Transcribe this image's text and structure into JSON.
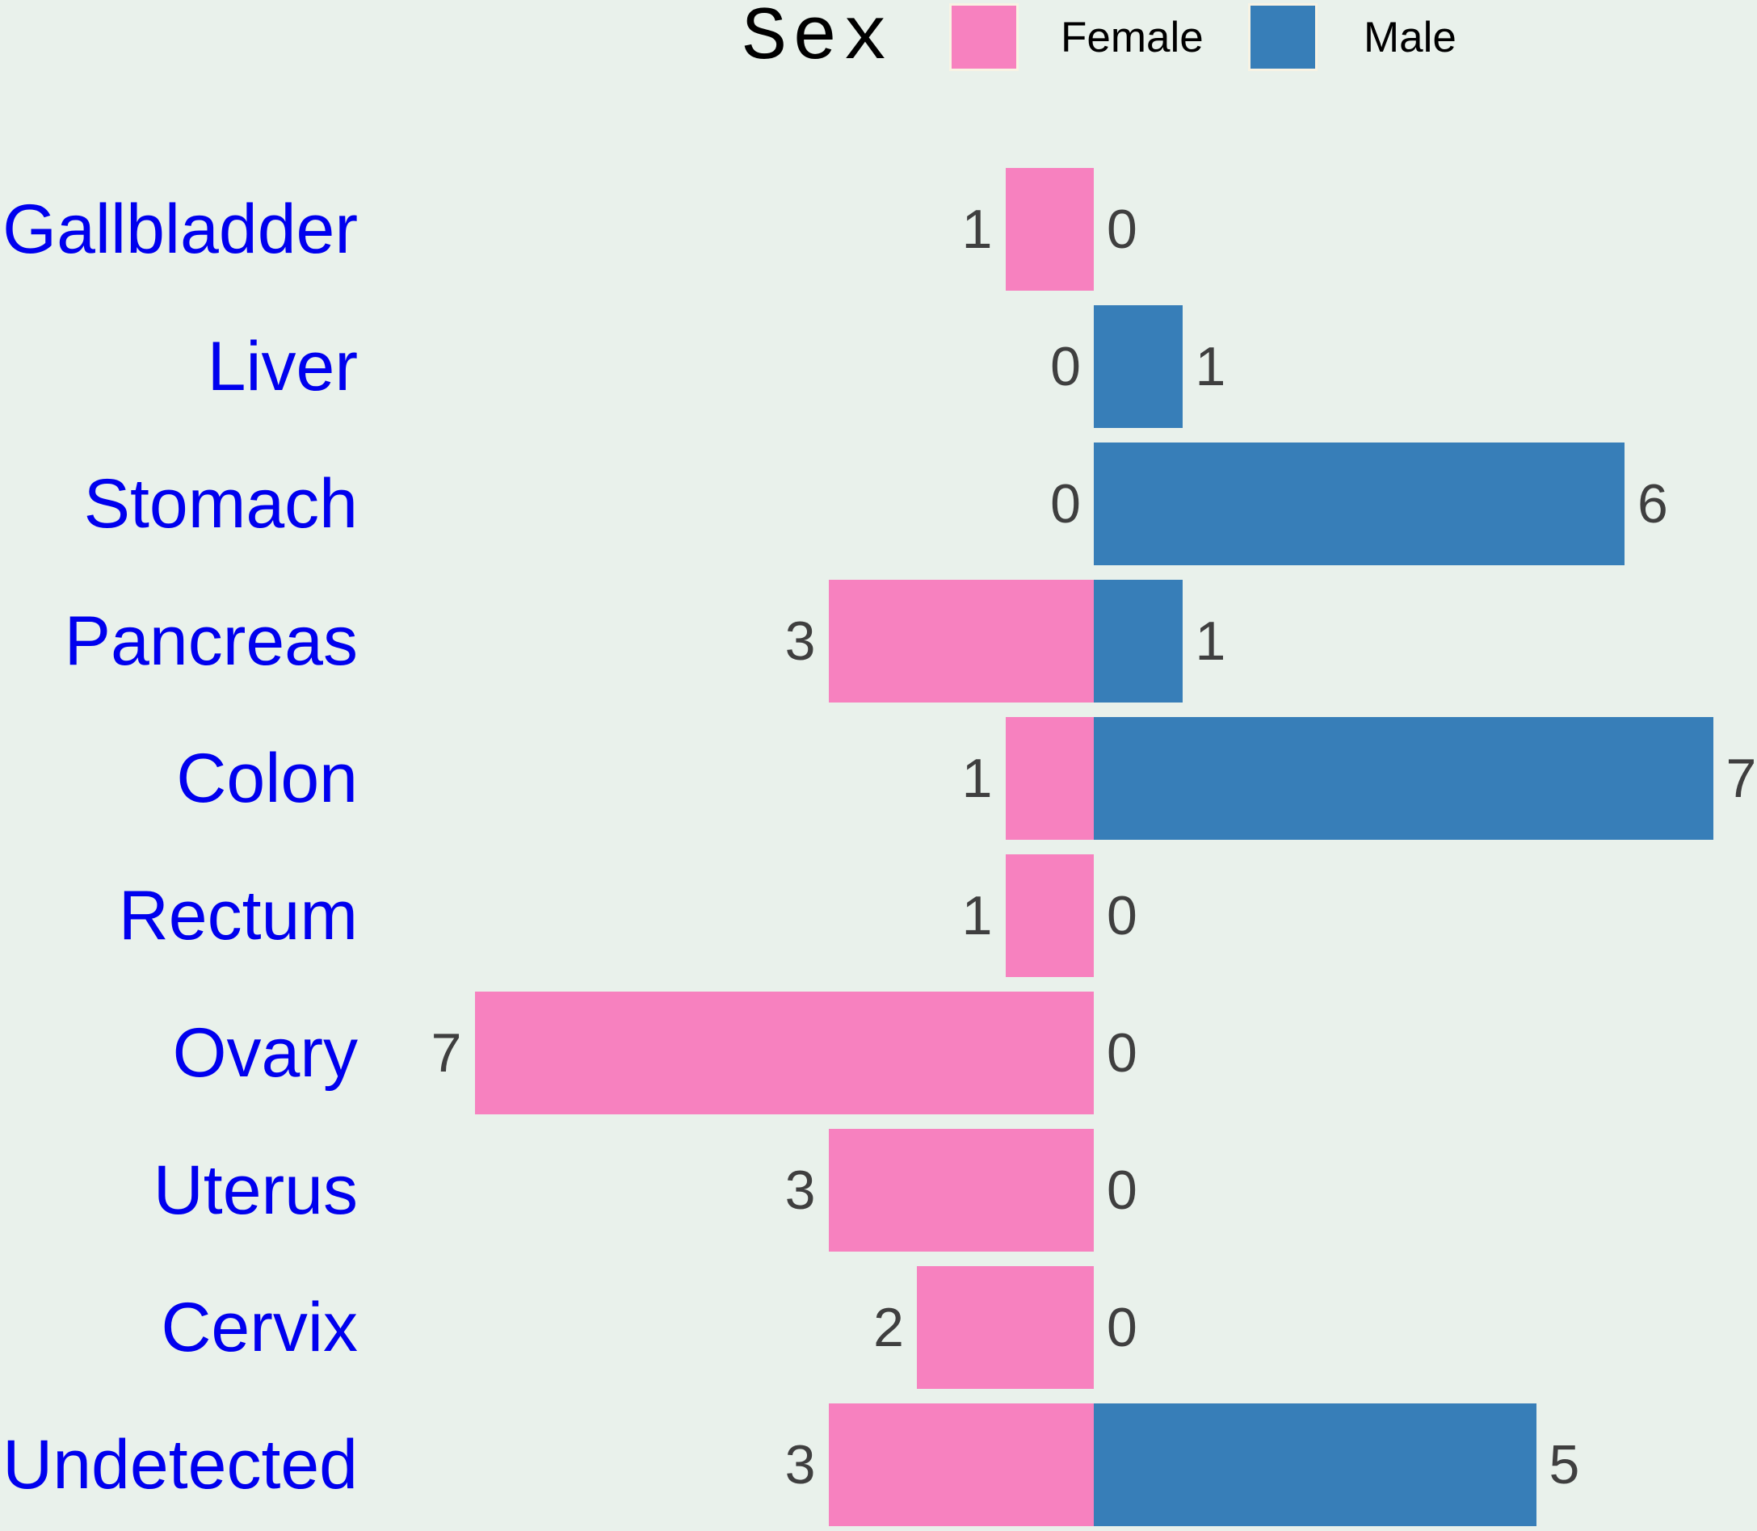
{
  "chart_data": {
    "type": "bar",
    "variant": "diverging-horizontal-pyramid",
    "title": "",
    "legend": {
      "title": "Sex",
      "position": "top",
      "entries": [
        {
          "label": "Female",
          "color": "#F781BF"
        },
        {
          "label": "Male",
          "color": "#377EB8"
        }
      ]
    },
    "categories": [
      "Gallbladder",
      "Liver",
      "Stomach",
      "Pancreas",
      "Colon",
      "Rectum",
      "Ovary",
      "Uterus",
      "Cervix",
      "Undetected"
    ],
    "series": [
      {
        "name": "Female",
        "side": "left",
        "color": "#F781BF",
        "values": [
          1,
          0,
          0,
          3,
          1,
          1,
          7,
          3,
          2,
          3
        ]
      },
      {
        "name": "Male",
        "side": "right",
        "color": "#377EB8",
        "values": [
          0,
          1,
          6,
          1,
          7,
          0,
          0,
          0,
          0,
          5
        ]
      }
    ],
    "value_labels_shown": true,
    "axis": {
      "x_min": 0,
      "x_max": 7,
      "gridlines": false,
      "tick_labels": false
    }
  },
  "colors": {
    "background": "#E9F1EB",
    "female_bar": "#F781BF",
    "male_bar": "#377EB8",
    "category_label": "#0000EE",
    "value_label": "#3F3F3F",
    "legend_text": "#000000"
  }
}
